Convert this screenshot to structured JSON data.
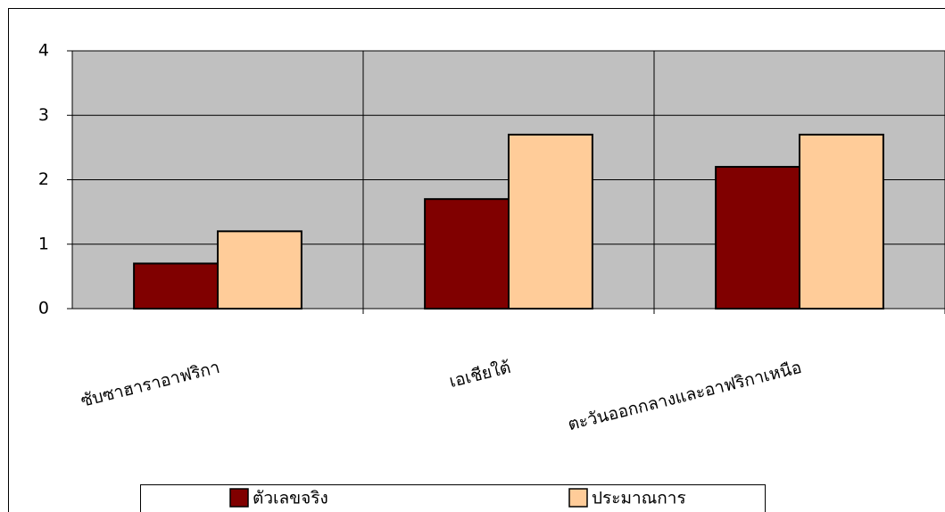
{
  "chart_data": {
    "type": "bar",
    "categories": [
      "ซับซาฮาราอาฟริกา",
      "เอเชียใต้",
      "ตะวันออกกลางและอาฟริกาเหนือ"
    ],
    "series": [
      {
        "name": "ตัวเลขจริง",
        "color": "#800000",
        "values": [
          0.7,
          1.7,
          2.2
        ]
      },
      {
        "name": "ประมาณการ",
        "color": "#FFCC99",
        "values": [
          1.2,
          2.7,
          2.7
        ]
      }
    ],
    "ylim": [
      0,
      4
    ],
    "yticks": [
      0,
      1,
      2,
      3,
      4
    ],
    "grid": true,
    "plot_background": "#C0C0C0",
    "legend": "bottom"
  }
}
